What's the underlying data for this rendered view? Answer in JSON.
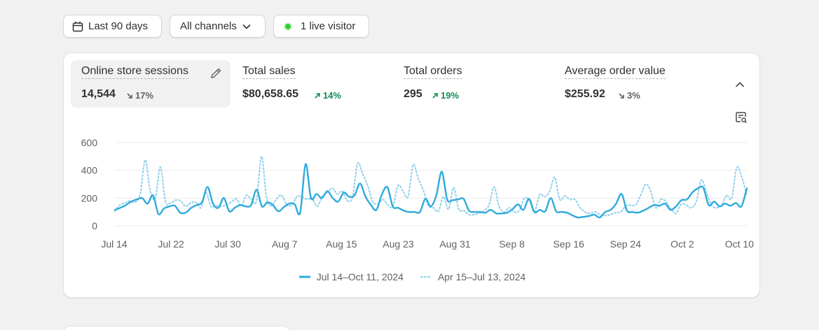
{
  "filters": {
    "date_range": "Last 90 days",
    "channels": "All channels",
    "live_visitors": "1 live visitor"
  },
  "metrics": [
    {
      "label": "Online store sessions",
      "value": "14,544",
      "delta": "17%",
      "direction": "down",
      "selected": true
    },
    {
      "label": "Total sales",
      "value": "$80,658.65",
      "delta": "14%",
      "direction": "up",
      "selected": false
    },
    {
      "label": "Total orders",
      "value": "295",
      "delta": "19%",
      "direction": "up",
      "selected": false
    },
    {
      "label": "Average order value",
      "value": "$255.92",
      "delta": "3%",
      "direction": "down",
      "selected": false
    }
  ],
  "icons": {
    "date": "calendar-icon",
    "channels": "chevron-down-icon",
    "live": "live-status-dot-icon",
    "edit": "pencil-icon",
    "collapse": "chevron-up-icon",
    "analyze": "analyze-report-icon"
  },
  "colors": {
    "current_series": "#2eaadc",
    "previous_series": "#8fd0ec",
    "up": "#0f8a52",
    "down": "#616161",
    "live": "#29d22c"
  },
  "chart_data": {
    "type": "line",
    "title": "",
    "xlabel": "",
    "ylabel": "",
    "ylim": [
      0,
      600
    ],
    "y_ticks": [
      "0",
      "200",
      "400",
      "600"
    ],
    "x_ticks": [
      "Jul 14",
      "Jul 22",
      "Jul 30",
      "Aug 7",
      "Aug 15",
      "Aug 23",
      "Aug 31",
      "Sep 8",
      "Sep 16",
      "Sep 24",
      "Oct 2",
      "Oct 10"
    ],
    "grid": true,
    "legend_position": "bottom",
    "series": [
      {
        "name": "Jul 14–Oct 11, 2024",
        "style": "solid",
        "values": [
          115,
          130,
          150,
          175,
          190,
          200,
          160,
          220,
          85,
          125,
          140,
          145,
          95,
          95,
          130,
          150,
          170,
          280,
          160,
          130,
          200,
          105,
          130,
          150,
          140,
          150,
          260,
          140,
          170,
          150,
          105,
          135,
          160,
          155,
          95,
          445,
          200,
          230,
          200,
          250,
          200,
          175,
          240,
          210,
          220,
          305,
          210,
          150,
          115,
          225,
          280,
          140,
          130,
          110,
          100,
          100,
          100,
          195,
          140,
          220,
          390,
          190,
          185,
          190,
          195,
          110,
          100,
          100,
          95,
          115,
          90,
          90,
          95,
          120,
          155,
          115,
          195,
          100,
          115,
          105,
          200,
          105,
          100,
          95,
          75,
          60,
          65,
          70,
          80,
          60,
          100,
          115,
          160,
          230,
          110,
          100,
          95,
          110,
          130,
          150,
          145,
          160,
          115,
          140,
          185,
          190,
          240,
          270,
          275,
          150,
          175,
          140,
          160,
          145,
          165,
          140,
          270
        ]
      },
      {
        "name": "Apr 15–Jul 13, 2024",
        "style": "dotted",
        "values": [
          105,
          150,
          165,
          180,
          170,
          230,
          475,
          250,
          200,
          425,
          175,
          165,
          185,
          180,
          140,
          165,
          170,
          130,
          240,
          140,
          145,
          140,
          150,
          170,
          195,
          145,
          220,
          190,
          180,
          500,
          200,
          145,
          195,
          220,
          150,
          150,
          210,
          210,
          190,
          200,
          140,
          210,
          240,
          270,
          230,
          250,
          180,
          210,
          450,
          375,
          290,
          175,
          160,
          190,
          150,
          140,
          290,
          250,
          210,
          440,
          340,
          255,
          145,
          130,
          105,
          210,
          120,
          275,
          120,
          110,
          80,
          80,
          90,
          110,
          150,
          280,
          140,
          100,
          130,
          100,
          110,
          200,
          180,
          100,
          225,
          210,
          250,
          350,
          190,
          215,
          190,
          190,
          130,
          100,
          90,
          100,
          80,
          75,
          80,
          95,
          100,
          140,
          150,
          150,
          220,
          300,
          250,
          130,
          190,
          175,
          120,
          90,
          155,
          150,
          130,
          175,
          330,
          240,
          150,
          130,
          150,
          220,
          200,
          420,
          350,
          220
        ]
      }
    ]
  }
}
